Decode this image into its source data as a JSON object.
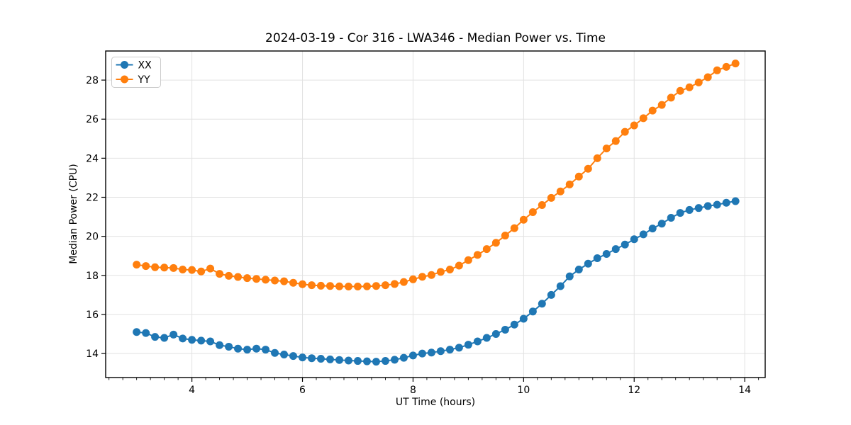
{
  "figure": {
    "background": "#ffffff",
    "plot_background": "#ffffff",
    "spine_color": "#000000",
    "grid_color": "#e2e2e2",
    "tick_color": "#000000"
  },
  "chart_data": {
    "type": "line",
    "title": "2024-03-19 - Cor 316 - LWA346 - Median Power vs. Time",
    "xlabel": "UT Time (hours)",
    "ylabel": "Median Power (CPU)",
    "xlim": [
      2.44,
      14.37
    ],
    "ylim": [
      12.77,
      29.49
    ],
    "x_major_ticks": [
      4,
      6,
      8,
      10,
      12,
      14
    ],
    "x_minor_step": 0.25,
    "y_major_ticks": [
      14,
      16,
      18,
      20,
      22,
      24,
      26,
      28
    ],
    "grid": true,
    "legend_position": "upper-left",
    "marker": "circle",
    "x": [
      3.0,
      3.167,
      3.333,
      3.5,
      3.667,
      3.833,
      4.0,
      4.167,
      4.333,
      4.5,
      4.667,
      4.833,
      5.0,
      5.167,
      5.333,
      5.5,
      5.667,
      5.833,
      6.0,
      6.167,
      6.333,
      6.5,
      6.667,
      6.833,
      7.0,
      7.167,
      7.333,
      7.5,
      7.667,
      7.833,
      8.0,
      8.167,
      8.333,
      8.5,
      8.667,
      8.833,
      9.0,
      9.167,
      9.333,
      9.5,
      9.667,
      9.833,
      10.0,
      10.167,
      10.333,
      10.5,
      10.667,
      10.833,
      11.0,
      11.167,
      11.333,
      11.5,
      11.667,
      11.833,
      12.0,
      12.167,
      12.333,
      12.5,
      12.667,
      12.833,
      13.0,
      13.167,
      13.333,
      13.5,
      13.667,
      13.833
    ],
    "series": [
      {
        "name": "XX",
        "color": "#1f77b4",
        "values": [
          15.1,
          15.05,
          14.85,
          14.8,
          14.97,
          14.77,
          14.7,
          14.66,
          14.62,
          14.43,
          14.35,
          14.25,
          14.2,
          14.25,
          14.2,
          14.03,
          13.95,
          13.87,
          13.8,
          13.76,
          13.73,
          13.7,
          13.67,
          13.64,
          13.62,
          13.6,
          13.58,
          13.62,
          13.68,
          13.78,
          13.9,
          14.0,
          14.05,
          14.12,
          14.2,
          14.3,
          14.45,
          14.62,
          14.8,
          15.0,
          15.22,
          15.48,
          15.78,
          16.15,
          16.55,
          17.0,
          17.45,
          17.95,
          18.3,
          18.6,
          18.88,
          19.1,
          19.35,
          19.58,
          19.85,
          20.1,
          20.4,
          20.65,
          20.95,
          21.2,
          21.35,
          21.45,
          21.55,
          21.62,
          21.72,
          21.8
        ]
      },
      {
        "name": "YY",
        "color": "#ff7f0e",
        "values": [
          18.55,
          18.48,
          18.42,
          18.4,
          18.38,
          18.3,
          18.28,
          18.2,
          18.35,
          18.08,
          17.98,
          17.92,
          17.86,
          17.82,
          17.78,
          17.74,
          17.7,
          17.62,
          17.55,
          17.5,
          17.47,
          17.46,
          17.44,
          17.43,
          17.43,
          17.44,
          17.46,
          17.5,
          17.56,
          17.66,
          17.8,
          17.93,
          18.02,
          18.18,
          18.3,
          18.5,
          18.78,
          19.05,
          19.35,
          19.67,
          20.04,
          20.42,
          20.85,
          21.24,
          21.6,
          21.97,
          22.3,
          22.66,
          23.06,
          23.46,
          24.0,
          24.5,
          24.88,
          25.35,
          25.68,
          26.05,
          26.44,
          26.73,
          27.1,
          27.45,
          27.63,
          27.88,
          28.15,
          28.5,
          28.68,
          28.85
        ]
      }
    ]
  }
}
